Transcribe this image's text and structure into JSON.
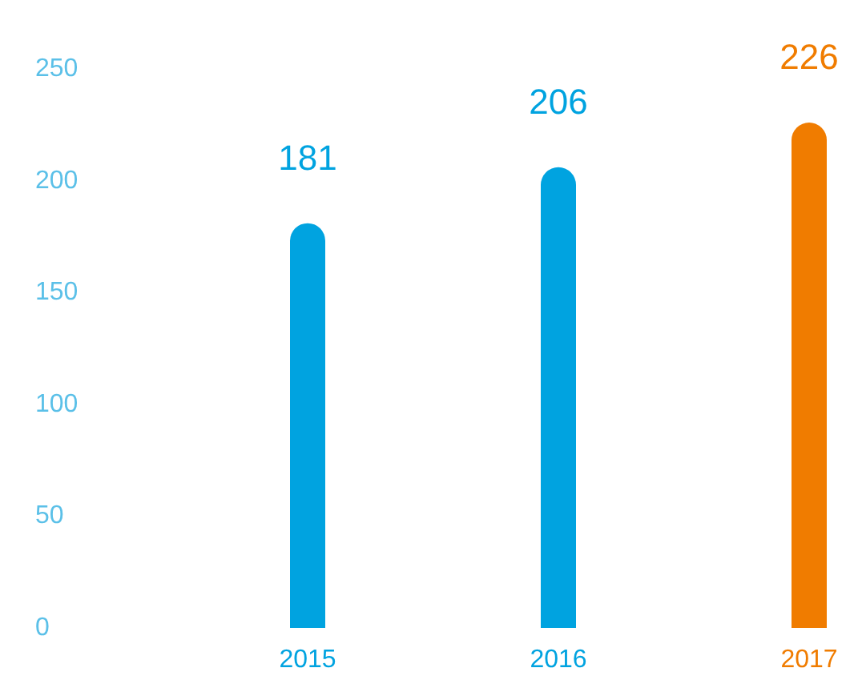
{
  "chart_data": {
    "type": "bar",
    "categories": [
      "2015",
      "2016",
      "2017"
    ],
    "values": [
      181,
      206,
      226
    ],
    "colors": [
      "#00a3e0",
      "#00a3e0",
      "#f07c00"
    ],
    "ylim": [
      0,
      250
    ],
    "yticks": [
      0,
      50,
      100,
      150,
      200,
      250
    ],
    "grid": false,
    "data_labels": true
  }
}
